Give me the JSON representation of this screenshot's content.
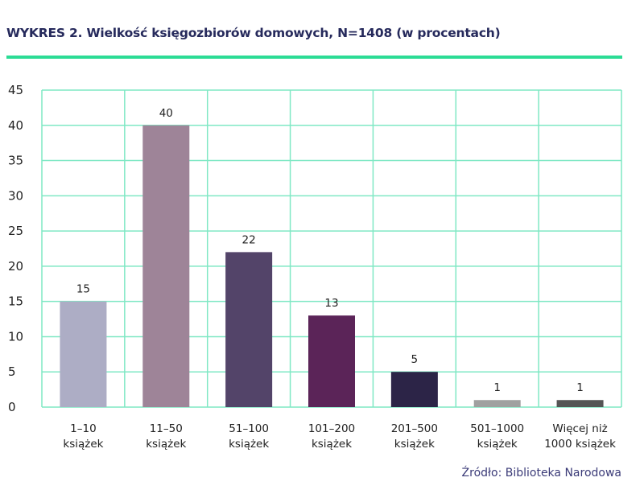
{
  "title": "WYKRES 2. Wielkość księgozbiorów domowych, N=1408 (w procentach)",
  "source": "Źródło: Biblioteka Narodowa",
  "colors": {
    "grid": "#7fe8c4",
    "rule": "#2bdc95",
    "title": "#262a5c"
  },
  "chart_data": {
    "type": "bar",
    "title": "WYKRES 2. Wielkość księgozbiorów domowych, N=1408 (w procentach)",
    "categories": [
      [
        "1–10",
        "książek"
      ],
      [
        "11–50",
        "książek"
      ],
      [
        "51–100",
        "książek"
      ],
      [
        "101–200",
        "książek"
      ],
      [
        "201–500",
        "książek"
      ],
      [
        "501–1000",
        "książek"
      ],
      [
        "Więcej niż",
        "1000 książek"
      ]
    ],
    "values": [
      15,
      40,
      22,
      13,
      5,
      1,
      1
    ],
    "data_labels": [
      "15",
      "40",
      "22",
      "13",
      "5",
      "1",
      "1"
    ],
    "bar_colors": [
      "#adadc5",
      "#9e8498",
      "#534469",
      "#5b2458",
      "#2c2447",
      "#a0a0a0",
      "#555555"
    ],
    "ylim": [
      0,
      45
    ],
    "yticks": [
      0,
      5,
      10,
      15,
      20,
      25,
      30,
      35,
      40,
      45
    ],
    "xlabel": "",
    "ylabel": "",
    "grid": true,
    "legend": "none"
  }
}
